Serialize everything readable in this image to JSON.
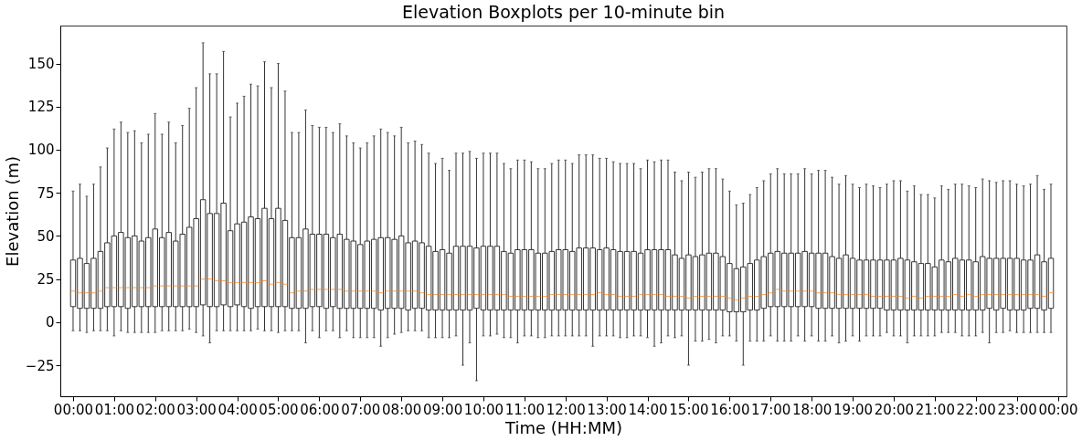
{
  "chart_data": {
    "type": "box",
    "title": "Elevation Boxplots per 10-minute bin",
    "xlabel": "Time (HH:MM)",
    "ylabel": "Elevation (m)",
    "x": [
      0,
      0.167,
      0.333,
      0.5,
      0.667,
      0.833,
      1,
      1.167,
      1.333,
      1.5,
      1.667,
      1.833,
      2,
      2.167,
      2.333,
      2.5,
      2.667,
      2.833,
      3,
      3.167,
      3.333,
      3.5,
      3.667,
      3.833,
      4,
      4.167,
      4.333,
      4.5,
      4.667,
      4.833,
      5,
      5.167,
      5.333,
      5.5,
      5.667,
      5.833,
      6,
      6.167,
      6.333,
      6.5,
      6.667,
      6.833,
      7,
      7.167,
      7.333,
      7.5,
      7.667,
      7.833,
      8,
      8.167,
      8.333,
      8.5,
      8.667,
      8.833,
      9,
      9.167,
      9.333,
      9.5,
      9.667,
      9.833,
      10,
      10.167,
      10.333,
      10.5,
      10.667,
      10.833,
      11,
      11.167,
      11.333,
      11.5,
      11.667,
      11.833,
      12,
      12.167,
      12.333,
      12.5,
      12.667,
      12.833,
      13,
      13.167,
      13.333,
      13.5,
      13.667,
      13.833,
      14,
      14.167,
      14.333,
      14.5,
      14.667,
      14.833,
      15,
      15.167,
      15.333,
      15.5,
      15.667,
      15.833,
      16,
      16.167,
      16.333,
      16.5,
      16.667,
      16.833,
      17,
      17.167,
      17.333,
      17.5,
      17.667,
      17.833,
      18,
      18.167,
      18.333,
      18.5,
      18.667,
      18.833,
      19,
      19.167,
      19.333,
      19.5,
      19.667,
      19.833,
      20,
      20.167,
      20.333,
      20.5,
      20.667,
      20.833,
      21,
      21.167,
      21.333,
      21.5,
      21.667,
      21.833,
      22,
      22.167,
      22.333,
      22.5,
      22.667,
      22.833,
      23,
      23.167,
      23.333,
      23.5,
      23.667,
      23.833
    ],
    "xlim": [
      -0.2,
      24.1
    ],
    "xticks": [
      {
        "value": 0,
        "label": "00:00"
      },
      {
        "value": 1,
        "label": "01:00"
      },
      {
        "value": 2,
        "label": "02:00"
      },
      {
        "value": 3,
        "label": "03:00"
      },
      {
        "value": 4,
        "label": "04:00"
      },
      {
        "value": 5,
        "label": "05:00"
      },
      {
        "value": 6,
        "label": "06:00"
      },
      {
        "value": 7,
        "label": "07:00"
      },
      {
        "value": 8,
        "label": "08:00"
      },
      {
        "value": 9,
        "label": "09:00"
      },
      {
        "value": 10,
        "label": "10:00"
      },
      {
        "value": 11,
        "label": "11:00"
      },
      {
        "value": 12,
        "label": "12:00"
      },
      {
        "value": 13,
        "label": "13:00"
      },
      {
        "value": 14,
        "label": "14:00"
      },
      {
        "value": 15,
        "label": "15:00"
      },
      {
        "value": 16,
        "label": "16:00"
      },
      {
        "value": 17,
        "label": "17:00"
      },
      {
        "value": 18,
        "label": "18:00"
      },
      {
        "value": 19,
        "label": "19:00"
      },
      {
        "value": 20,
        "label": "20:00"
      },
      {
        "value": 21,
        "label": "21:00"
      },
      {
        "value": 22,
        "label": "22:00"
      },
      {
        "value": 23,
        "label": "23:00"
      },
      {
        "value": 24,
        "label": "00:00"
      }
    ],
    "ylim": [
      -43,
      172
    ],
    "yticks": [
      -25,
      0,
      25,
      50,
      75,
      100,
      125,
      150
    ],
    "boxes": [
      {
        "low": -5,
        "q1": 9,
        "median": 18,
        "q3": 36,
        "high": 76
      },
      {
        "low": -5,
        "q1": 8,
        "median": 17,
        "q3": 37,
        "high": 80
      },
      {
        "low": -6,
        "q1": 8,
        "median": 17,
        "q3": 34,
        "high": 73
      },
      {
        "low": -5,
        "q1": 8,
        "median": 17,
        "q3": 37,
        "high": 80
      },
      {
        "low": -5,
        "q1": 8,
        "median": 18,
        "q3": 41,
        "high": 90
      },
      {
        "low": -5,
        "q1": 9,
        "median": 20,
        "q3": 46,
        "high": 101
      },
      {
        "low": -8,
        "q1": 9,
        "median": 20,
        "q3": 50,
        "high": 112
      },
      {
        "low": -5,
        "q1": 9,
        "median": 20,
        "q3": 52,
        "high": 116
      },
      {
        "low": -6,
        "q1": 8,
        "median": 20,
        "q3": 49,
        "high": 110
      },
      {
        "low": -6,
        "q1": 9,
        "median": 20,
        "q3": 50,
        "high": 111
      },
      {
        "low": -6,
        "q1": 9,
        "median": 20,
        "q3": 47,
        "high": 104
      },
      {
        "low": -6,
        "q1": 9,
        "median": 20,
        "q3": 49,
        "high": 109
      },
      {
        "low": -6,
        "q1": 9,
        "median": 21,
        "q3": 54,
        "high": 121
      },
      {
        "low": -5,
        "q1": 9,
        "median": 21,
        "q3": 49,
        "high": 109
      },
      {
        "low": -5,
        "q1": 9,
        "median": 21,
        "q3": 52,
        "high": 116
      },
      {
        "low": -5,
        "q1": 9,
        "median": 21,
        "q3": 47,
        "high": 104
      },
      {
        "low": -5,
        "q1": 9,
        "median": 21,
        "q3": 51,
        "high": 114
      },
      {
        "low": -4,
        "q1": 9,
        "median": 21,
        "q3": 55,
        "high": 124
      },
      {
        "low": -6,
        "q1": 9,
        "median": 21,
        "q3": 60,
        "high": 136
      },
      {
        "low": -8,
        "q1": 10,
        "median": 25,
        "q3": 71,
        "high": 162
      },
      {
        "low": -12,
        "q1": 9,
        "median": 25,
        "q3": 63,
        "high": 144
      },
      {
        "low": -5,
        "q1": 9,
        "median": 24,
        "q3": 63,
        "high": 144
      },
      {
        "low": -5,
        "q1": 10,
        "median": 24,
        "q3": 69,
        "high": 157
      },
      {
        "low": -5,
        "q1": 9,
        "median": 23,
        "q3": 53,
        "high": 119
      },
      {
        "low": -5,
        "q1": 10,
        "median": 23,
        "q3": 57,
        "high": 127
      },
      {
        "low": -5,
        "q1": 9,
        "median": 23,
        "q3": 58,
        "high": 131
      },
      {
        "low": -5,
        "q1": 8,
        "median": 23,
        "q3": 61,
        "high": 138
      },
      {
        "low": -4,
        "q1": 9,
        "median": 23,
        "q3": 60,
        "high": 137
      },
      {
        "low": -5,
        "q1": 9,
        "median": 24,
        "q3": 66,
        "high": 151
      },
      {
        "low": -5,
        "q1": 9,
        "median": 22,
        "q3": 60,
        "high": 136
      },
      {
        "low": -6,
        "q1": 9,
        "median": 23,
        "q3": 66,
        "high": 150
      },
      {
        "low": -5,
        "q1": 9,
        "median": 22,
        "q3": 59,
        "high": 134
      },
      {
        "low": -5,
        "q1": 8,
        "median": 17,
        "q3": 49,
        "high": 110
      },
      {
        "low": -5,
        "q1": 8,
        "median": 18,
        "q3": 49,
        "high": 110
      },
      {
        "low": -12,
        "q1": 8,
        "median": 18,
        "q3": 54,
        "high": 123
      },
      {
        "low": -5,
        "q1": 9,
        "median": 19,
        "q3": 51,
        "high": 114
      },
      {
        "low": -9,
        "q1": 9,
        "median": 19,
        "q3": 51,
        "high": 113
      },
      {
        "low": -5,
        "q1": 8,
        "median": 19,
        "q3": 51,
        "high": 113
      },
      {
        "low": -5,
        "q1": 9,
        "median": 19,
        "q3": 49,
        "high": 110
      },
      {
        "low": -9,
        "q1": 8,
        "median": 19,
        "q3": 51,
        "high": 115
      },
      {
        "low": -5,
        "q1": 8,
        "median": 18,
        "q3": 48,
        "high": 108
      },
      {
        "low": -9,
        "q1": 8,
        "median": 18,
        "q3": 47,
        "high": 104
      },
      {
        "low": -9,
        "q1": 8,
        "median": 18,
        "q3": 45,
        "high": 101
      },
      {
        "low": -9,
        "q1": 8,
        "median": 18,
        "q3": 47,
        "high": 104
      },
      {
        "low": -9,
        "q1": 8,
        "median": 18,
        "q3": 48,
        "high": 108
      },
      {
        "low": -14,
        "q1": 7,
        "median": 17,
        "q3": 49,
        "high": 112
      },
      {
        "low": -9,
        "q1": 8,
        "median": 18,
        "q3": 49,
        "high": 110
      },
      {
        "low": -7,
        "q1": 8,
        "median": 18,
        "q3": 48,
        "high": 108
      },
      {
        "low": -6,
        "q1": 8,
        "median": 18,
        "q3": 50,
        "high": 113
      },
      {
        "low": -5,
        "q1": 7,
        "median": 18,
        "q3": 46,
        "high": 104
      },
      {
        "low": -5,
        "q1": 8,
        "median": 18,
        "q3": 47,
        "high": 105
      },
      {
        "low": -5,
        "q1": 8,
        "median": 17,
        "q3": 46,
        "high": 103
      },
      {
        "low": -9,
        "q1": 7,
        "median": 16,
        "q3": 44,
        "high": 98
      },
      {
        "low": -9,
        "q1": 7,
        "median": 16,
        "q3": 41,
        "high": 92
      },
      {
        "low": -9,
        "q1": 7,
        "median": 16,
        "q3": 42,
        "high": 95
      },
      {
        "low": -9,
        "q1": 7,
        "median": 16,
        "q3": 40,
        "high": 88
      },
      {
        "low": -8,
        "q1": 7,
        "median": 16,
        "q3": 44,
        "high": 98
      },
      {
        "low": -25,
        "q1": 7,
        "median": 16,
        "q3": 44,
        "high": 98
      },
      {
        "low": -12,
        "q1": 7,
        "median": 16,
        "q3": 44,
        "high": 99
      },
      {
        "low": -34,
        "q1": 8,
        "median": 16,
        "q3": 43,
        "high": 95
      },
      {
        "low": -8,
        "q1": 7,
        "median": 16,
        "q3": 44,
        "high": 98
      },
      {
        "low": -8,
        "q1": 7,
        "median": 16,
        "q3": 44,
        "high": 98
      },
      {
        "low": -7,
        "q1": 7,
        "median": 16,
        "q3": 44,
        "high": 98
      },
      {
        "low": -9,
        "q1": 7,
        "median": 16,
        "q3": 41,
        "high": 92
      },
      {
        "low": -9,
        "q1": 7,
        "median": 15,
        "q3": 40,
        "high": 89
      },
      {
        "low": -12,
        "q1": 7,
        "median": 15,
        "q3": 42,
        "high": 94
      },
      {
        "low": -8,
        "q1": 7,
        "median": 15,
        "q3": 42,
        "high": 94
      },
      {
        "low": -8,
        "q1": 7,
        "median": 15,
        "q3": 42,
        "high": 93
      },
      {
        "low": -9,
        "q1": 7,
        "median": 15,
        "q3": 40,
        "high": 89
      },
      {
        "low": -9,
        "q1": 7,
        "median": 15,
        "q3": 40,
        "high": 89
      },
      {
        "low": -8,
        "q1": 7,
        "median": 16,
        "q3": 41,
        "high": 92
      },
      {
        "low": -8,
        "q1": 7,
        "median": 16,
        "q3": 42,
        "high": 94
      },
      {
        "low": -8,
        "q1": 7,
        "median": 16,
        "q3": 42,
        "high": 94
      },
      {
        "low": -8,
        "q1": 7,
        "median": 16,
        "q3": 41,
        "high": 92
      },
      {
        "low": -8,
        "q1": 7,
        "median": 16,
        "q3": 43,
        "high": 97
      },
      {
        "low": -8,
        "q1": 7,
        "median": 16,
        "q3": 43,
        "high": 97
      },
      {
        "low": -14,
        "q1": 7,
        "median": 16,
        "q3": 43,
        "high": 97
      },
      {
        "low": -8,
        "q1": 7,
        "median": 17,
        "q3": 42,
        "high": 95
      },
      {
        "low": -8,
        "q1": 7,
        "median": 16,
        "q3": 43,
        "high": 95
      },
      {
        "low": -8,
        "q1": 7,
        "median": 16,
        "q3": 42,
        "high": 93
      },
      {
        "low": -9,
        "q1": 7,
        "median": 15,
        "q3": 41,
        "high": 92
      },
      {
        "low": -9,
        "q1": 7,
        "median": 15,
        "q3": 41,
        "high": 92
      },
      {
        "low": -8,
        "q1": 7,
        "median": 15,
        "q3": 41,
        "high": 92
      },
      {
        "low": -8,
        "q1": 7,
        "median": 16,
        "q3": 40,
        "high": 89
      },
      {
        "low": -9,
        "q1": 7,
        "median": 16,
        "q3": 42,
        "high": 94
      },
      {
        "low": -14,
        "q1": 7,
        "median": 16,
        "q3": 42,
        "high": 93
      },
      {
        "low": -12,
        "q1": 7,
        "median": 16,
        "q3": 42,
        "high": 94
      },
      {
        "low": -8,
        "q1": 7,
        "median": 15,
        "q3": 42,
        "high": 94
      },
      {
        "low": -9,
        "q1": 7,
        "median": 15,
        "q3": 39,
        "high": 87
      },
      {
        "low": -8,
        "q1": 7,
        "median": 15,
        "q3": 37,
        "high": 82
      },
      {
        "low": -25,
        "q1": 7,
        "median": 14,
        "q3": 39,
        "high": 87
      },
      {
        "low": -11,
        "q1": 7,
        "median": 15,
        "q3": 38,
        "high": 84
      },
      {
        "low": -11,
        "q1": 7,
        "median": 15,
        "q3": 39,
        "high": 87
      },
      {
        "low": -10,
        "q1": 7,
        "median": 15,
        "q3": 40,
        "high": 89
      },
      {
        "low": -12,
        "q1": 7,
        "median": 15,
        "q3": 40,
        "high": 89
      },
      {
        "low": -8,
        "q1": 7,
        "median": 15,
        "q3": 38,
        "high": 83
      },
      {
        "low": -8,
        "q1": 6,
        "median": 14,
        "q3": 34,
        "high": 76
      },
      {
        "low": -11,
        "q1": 6,
        "median": 13,
        "q3": 31,
        "high": 68
      },
      {
        "low": -25,
        "q1": 6,
        "median": 14,
        "q3": 32,
        "high": 69
      },
      {
        "low": -11,
        "q1": 7,
        "median": 15,
        "q3": 34,
        "high": 74
      },
      {
        "low": -11,
        "q1": 7,
        "median": 15,
        "q3": 36,
        "high": 78
      },
      {
        "low": -11,
        "q1": 8,
        "median": 16,
        "q3": 38,
        "high": 82
      },
      {
        "low": -8,
        "q1": 9,
        "median": 17,
        "q3": 40,
        "high": 86
      },
      {
        "low": -11,
        "q1": 9,
        "median": 19,
        "q3": 41,
        "high": 89
      },
      {
        "low": -11,
        "q1": 9,
        "median": 18,
        "q3": 40,
        "high": 86
      },
      {
        "low": -11,
        "q1": 9,
        "median": 18,
        "q3": 40,
        "high": 86
      },
      {
        "low": -8,
        "q1": 9,
        "median": 18,
        "q3": 40,
        "high": 86
      },
      {
        "low": -11,
        "q1": 9,
        "median": 18,
        "q3": 41,
        "high": 89
      },
      {
        "low": -8,
        "q1": 9,
        "median": 18,
        "q3": 40,
        "high": 86
      },
      {
        "low": -11,
        "q1": 8,
        "median": 17,
        "q3": 40,
        "high": 88
      },
      {
        "low": -11,
        "q1": 8,
        "median": 17,
        "q3": 40,
        "high": 88
      },
      {
        "low": -8,
        "q1": 8,
        "median": 17,
        "q3": 38,
        "high": 84
      },
      {
        "low": -12,
        "q1": 8,
        "median": 16,
        "q3": 37,
        "high": 80
      },
      {
        "low": -11,
        "q1": 8,
        "median": 16,
        "q3": 39,
        "high": 85
      },
      {
        "low": -8,
        "q1": 8,
        "median": 16,
        "q3": 37,
        "high": 80
      },
      {
        "low": -11,
        "q1": 8,
        "median": 16,
        "q3": 36,
        "high": 78
      },
      {
        "low": -8,
        "q1": 8,
        "median": 16,
        "q3": 36,
        "high": 80
      },
      {
        "low": -8,
        "q1": 8,
        "median": 15,
        "q3": 36,
        "high": 79
      },
      {
        "low": -8,
        "q1": 8,
        "median": 15,
        "q3": 36,
        "high": 78
      },
      {
        "low": -6,
        "q1": 7,
        "median": 15,
        "q3": 36,
        "high": 80
      },
      {
        "low": -8,
        "q1": 7,
        "median": 15,
        "q3": 36,
        "high": 82
      },
      {
        "low": -8,
        "q1": 7,
        "median": 15,
        "q3": 37,
        "high": 82
      },
      {
        "low": -12,
        "q1": 7,
        "median": 14,
        "q3": 36,
        "high": 76
      },
      {
        "low": -8,
        "q1": 7,
        "median": 15,
        "q3": 35,
        "high": 79
      },
      {
        "low": -8,
        "q1": 7,
        "median": 14,
        "q3": 34,
        "high": 74
      },
      {
        "low": -8,
        "q1": 7,
        "median": 15,
        "q3": 34,
        "high": 74
      },
      {
        "low": -8,
        "q1": 7,
        "median": 15,
        "q3": 32,
        "high": 72
      },
      {
        "low": -6,
        "q1": 7,
        "median": 15,
        "q3": 36,
        "high": 79
      },
      {
        "low": -6,
        "q1": 7,
        "median": 15,
        "q3": 35,
        "high": 77
      },
      {
        "low": -6,
        "q1": 7,
        "median": 16,
        "q3": 37,
        "high": 80
      },
      {
        "low": -8,
        "q1": 7,
        "median": 15,
        "q3": 36,
        "high": 80
      },
      {
        "low": -8,
        "q1": 7,
        "median": 16,
        "q3": 36,
        "high": 79
      },
      {
        "low": -8,
        "q1": 7,
        "median": 15,
        "q3": 35,
        "high": 78
      },
      {
        "low": -6,
        "q1": 7,
        "median": 16,
        "q3": 38,
        "high": 83
      },
      {
        "low": -12,
        "q1": 8,
        "median": 16,
        "q3": 37,
        "high": 82
      },
      {
        "low": -6,
        "q1": 7,
        "median": 16,
        "q3": 37,
        "high": 81
      },
      {
        "low": -6,
        "q1": 8,
        "median": 16,
        "q3": 37,
        "high": 82
      },
      {
        "low": -5,
        "q1": 7,
        "median": 16,
        "q3": 37,
        "high": 82
      },
      {
        "low": -6,
        "q1": 7,
        "median": 16,
        "q3": 37,
        "high": 80
      },
      {
        "low": -6,
        "q1": 7,
        "median": 16,
        "q3": 36,
        "high": 79
      },
      {
        "low": -6,
        "q1": 8,
        "median": 16,
        "q3": 36,
        "high": 80
      },
      {
        "low": -6,
        "q1": 8,
        "median": 16,
        "q3": 39,
        "high": 85
      },
      {
        "low": -6,
        "q1": 7,
        "median": 15,
        "q3": 35,
        "high": 77
      },
      {
        "low": -6,
        "q1": 8,
        "median": 17,
        "q3": 37,
        "high": 80
      }
    ]
  }
}
